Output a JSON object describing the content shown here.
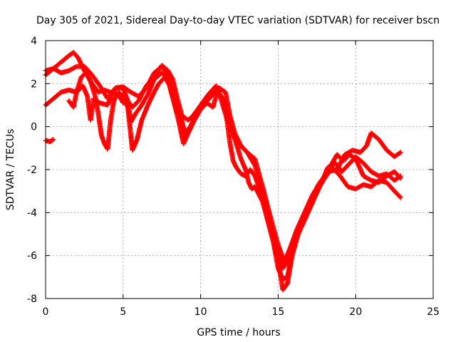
{
  "chart_data": {
    "type": "scatter",
    "title": "Day 305 of 2021, Sidereal Day-to-day VTEC variation (SDTVAR) for receiver bscn",
    "xlabel": "GPS time / hours",
    "ylabel": "SDTVAR / TECUs",
    "xlim": [
      0,
      25
    ],
    "ylim": [
      -8,
      4
    ],
    "xticks": [
      0,
      5,
      10,
      15,
      20,
      25
    ],
    "yticks": [
      -8,
      -6,
      -4,
      -2,
      0,
      2,
      4
    ],
    "grid": true,
    "marker": "plus",
    "color": "#ff0000",
    "series": [
      {
        "values": [
          [
            0.0,
            -0.65
          ],
          [
            0.3,
            -0.7
          ],
          [
            0.5,
            -0.6
          ]
        ]
      },
      {
        "values": [
          [
            0.0,
            2.4
          ],
          [
            0.5,
            2.7
          ],
          [
            1.0,
            3.0
          ],
          [
            1.5,
            3.3
          ],
          [
            1.8,
            3.45
          ],
          [
            2.1,
            3.2
          ],
          [
            2.5,
            2.6
          ],
          [
            3.0,
            2.0
          ],
          [
            3.4,
            1.6
          ],
          [
            3.8,
            1.7
          ],
          [
            4.2,
            1.6
          ],
          [
            4.7,
            1.5
          ],
          [
            5.0,
            1.1
          ],
          [
            5.3,
            1.2
          ],
          [
            5.6,
            0.9
          ],
          [
            6.0,
            1.2
          ],
          [
            6.5,
            1.9
          ],
          [
            7.0,
            2.3
          ],
          [
            7.5,
            2.85
          ],
          [
            7.9,
            2.6
          ],
          [
            8.2,
            2.2
          ],
          [
            8.5,
            1.3
          ],
          [
            8.8,
            0.5
          ],
          [
            9.2,
            0.3
          ],
          [
            9.5,
            0.5
          ],
          [
            10.0,
            1.0
          ],
          [
            10.5,
            1.5
          ],
          [
            11.0,
            1.9
          ],
          [
            11.3,
            1.3
          ],
          [
            11.6,
            0.6
          ],
          [
            12.0,
            -0.2
          ],
          [
            12.5,
            -0.8
          ],
          [
            13.0,
            -1.2
          ],
          [
            13.5,
            -1.8
          ],
          [
            14.0,
            -3.0
          ],
          [
            14.5,
            -4.5
          ],
          [
            15.0,
            -5.8
          ],
          [
            15.3,
            -6.6
          ],
          [
            15.6,
            -6.3
          ],
          [
            16.0,
            -5.3
          ],
          [
            16.5,
            -4.5
          ],
          [
            17.0,
            -3.8
          ],
          [
            17.5,
            -3.0
          ],
          [
            18.0,
            -2.4
          ],
          [
            18.5,
            -1.9
          ],
          [
            19.0,
            -2.3
          ],
          [
            19.5,
            -2.8
          ],
          [
            20.0,
            -2.9
          ],
          [
            20.5,
            -2.7
          ],
          [
            21.0,
            -2.8
          ],
          [
            21.5,
            -2.5
          ],
          [
            22.0,
            -2.6
          ],
          [
            22.5,
            -3.0
          ],
          [
            22.9,
            -3.3
          ]
        ]
      },
      {
        "values": [
          [
            0.0,
            2.6
          ],
          [
            0.5,
            2.7
          ],
          [
            1.0,
            2.5
          ],
          [
            1.5,
            2.6
          ],
          [
            2.0,
            2.8
          ],
          [
            2.5,
            2.8
          ],
          [
            3.0,
            2.4
          ],
          [
            3.5,
            1.9
          ],
          [
            4.0,
            1.3
          ],
          [
            4.5,
            1.8
          ],
          [
            5.0,
            1.85
          ],
          [
            5.5,
            1.6
          ],
          [
            6.0,
            1.4
          ],
          [
            6.5,
            1.8
          ],
          [
            7.0,
            2.5
          ],
          [
            7.5,
            2.8
          ],
          [
            7.8,
            2.5
          ],
          [
            8.1,
            1.6
          ],
          [
            8.4,
            0.8
          ],
          [
            8.7,
            0.3
          ],
          [
            9.0,
            -0.4
          ],
          [
            9.4,
            0.1
          ],
          [
            9.8,
            0.6
          ],
          [
            10.3,
            1.1
          ],
          [
            10.8,
            1.5
          ],
          [
            11.2,
            1.8
          ],
          [
            11.6,
            1.6
          ],
          [
            11.9,
            0.5
          ],
          [
            12.2,
            -0.3
          ],
          [
            12.6,
            -0.9
          ],
          [
            13.0,
            -1.2
          ],
          [
            13.5,
            -1.5
          ],
          [
            14.0,
            -2.8
          ],
          [
            14.5,
            -4.2
          ],
          [
            15.0,
            -5.5
          ],
          [
            15.4,
            -6.3
          ],
          [
            15.8,
            -5.6
          ],
          [
            16.2,
            -4.8
          ],
          [
            16.7,
            -4.0
          ],
          [
            17.2,
            -3.2
          ],
          [
            17.7,
            -2.6
          ],
          [
            18.2,
            -2.1
          ],
          [
            18.8,
            -2.0
          ],
          [
            19.3,
            -1.3
          ],
          [
            19.8,
            -1.1
          ],
          [
            20.3,
            -1.2
          ],
          [
            20.7,
            -0.9
          ],
          [
            21.0,
            -0.3
          ],
          [
            21.5,
            -0.6
          ],
          [
            22.0,
            -1.1
          ],
          [
            22.5,
            -1.4
          ],
          [
            22.9,
            -1.2
          ]
        ]
      },
      {
        "values": [
          [
            0.0,
            1.0
          ],
          [
            0.5,
            1.3
          ],
          [
            1.0,
            1.6
          ],
          [
            1.5,
            1.7
          ],
          [
            2.0,
            1.6
          ],
          [
            2.4,
            1.9
          ],
          [
            2.7,
            1.4
          ],
          [
            2.9,
            0.3
          ],
          [
            3.1,
            1.3
          ],
          [
            3.5,
            1.1
          ],
          [
            4.0,
            1.0
          ],
          [
            4.3,
            1.55
          ],
          [
            4.6,
            1.8
          ],
          [
            5.0,
            1.8
          ],
          [
            5.3,
            1.2
          ],
          [
            5.5,
            0.2
          ],
          [
            5.8,
            0.6
          ],
          [
            6.2,
            1.0
          ],
          [
            6.6,
            1.5
          ],
          [
            7.0,
            2.2
          ],
          [
            7.5,
            2.5
          ],
          [
            7.9,
            2.2
          ],
          [
            8.3,
            1.3
          ],
          [
            8.7,
            0.5
          ],
          [
            9.0,
            -0.3
          ],
          [
            9.3,
            -0.1
          ],
          [
            9.7,
            0.6
          ],
          [
            10.2,
            1.2
          ],
          [
            10.7,
            1.5
          ],
          [
            11.1,
            1.6
          ],
          [
            11.5,
            1.2
          ],
          [
            11.8,
            0.4
          ],
          [
            12.0,
            -0.1
          ],
          [
            12.3,
            -0.8
          ],
          [
            12.6,
            -1.5
          ],
          [
            12.9,
            -2.0
          ],
          [
            13.1,
            -2.6
          ],
          [
            13.3,
            -2.9
          ],
          [
            13.5,
            -2.8
          ],
          [
            14.0,
            -3.5
          ],
          [
            14.5,
            -4.8
          ],
          [
            15.0,
            -6.2
          ],
          [
            15.3,
            -7.6
          ],
          [
            15.6,
            -7.3
          ],
          [
            15.9,
            -6.0
          ],
          [
            16.3,
            -5.0
          ],
          [
            16.8,
            -4.2
          ],
          [
            17.3,
            -3.4
          ],
          [
            17.8,
            -2.6
          ],
          [
            18.2,
            -1.9
          ],
          [
            18.7,
            -1.7
          ],
          [
            19.1,
            -2.1
          ],
          [
            19.5,
            -1.8
          ],
          [
            20.0,
            -1.4
          ],
          [
            20.5,
            -1.7
          ],
          [
            21.0,
            -2.1
          ],
          [
            21.5,
            -2.3
          ],
          [
            22.0,
            -2.2
          ],
          [
            22.5,
            -2.5
          ],
          [
            22.9,
            -2.3
          ]
        ]
      },
      {
        "values": [
          [
            1.5,
            1.2
          ],
          [
            1.8,
            0.9
          ],
          [
            2.0,
            1.6
          ],
          [
            2.3,
            2.3
          ],
          [
            2.6,
            2.5
          ],
          [
            2.9,
            2.1
          ],
          [
            3.2,
            1.4
          ],
          [
            3.4,
            0.6
          ],
          [
            3.6,
            -0.4
          ],
          [
            3.8,
            -0.8
          ],
          [
            4.0,
            -1.05
          ],
          [
            4.2,
            0.3
          ],
          [
            4.4,
            1.2
          ],
          [
            4.7,
            1.6
          ],
          [
            5.0,
            1.4
          ],
          [
            5.3,
            0.9
          ],
          [
            5.5,
            -0.4
          ],
          [
            5.6,
            -1.1
          ],
          [
            5.9,
            -0.6
          ],
          [
            6.2,
            0.3
          ],
          [
            6.6,
            1.0
          ],
          [
            7.0,
            1.6
          ],
          [
            7.3,
            2.0
          ],
          [
            7.7,
            2.3
          ],
          [
            8.0,
            1.9
          ],
          [
            8.3,
            1.1
          ],
          [
            8.6,
            0.2
          ],
          [
            8.9,
            -0.8
          ],
          [
            9.2,
            -0.3
          ],
          [
            9.6,
            0.3
          ],
          [
            10.0,
            0.8
          ],
          [
            10.4,
            1.1
          ],
          [
            10.8,
            0.9
          ],
          [
            11.1,
            1.7
          ],
          [
            11.4,
            1.3
          ],
          [
            11.7,
            0.3
          ],
          [
            11.9,
            -0.8
          ],
          [
            12.1,
            -1.6
          ],
          [
            12.3,
            -1.9
          ],
          [
            12.6,
            -2.2
          ],
          [
            12.9,
            -2.3
          ],
          [
            13.2,
            -2.0
          ],
          [
            13.5,
            -2.3
          ],
          [
            13.9,
            -3.1
          ],
          [
            14.3,
            -4.3
          ],
          [
            14.7,
            -5.4
          ],
          [
            15.0,
            -6.6
          ],
          [
            15.3,
            -7.1
          ],
          [
            15.6,
            -7.0
          ],
          [
            15.9,
            -5.9
          ],
          [
            16.3,
            -4.9
          ],
          [
            16.7,
            -4.1
          ],
          [
            17.2,
            -3.3
          ],
          [
            17.6,
            -2.7
          ],
          [
            18.0,
            -2.3
          ],
          [
            18.4,
            -1.8
          ],
          [
            18.8,
            -1.3
          ],
          [
            19.2,
            -1.6
          ],
          [
            19.6,
            -1.3
          ],
          [
            20.0,
            -1.5
          ],
          [
            20.5,
            -2.3
          ],
          [
            21.0,
            -2.5
          ],
          [
            21.5,
            -2.6
          ],
          [
            22.0,
            -2.3
          ],
          [
            22.5,
            -2.1
          ],
          [
            22.9,
            -2.4
          ]
        ]
      }
    ]
  }
}
